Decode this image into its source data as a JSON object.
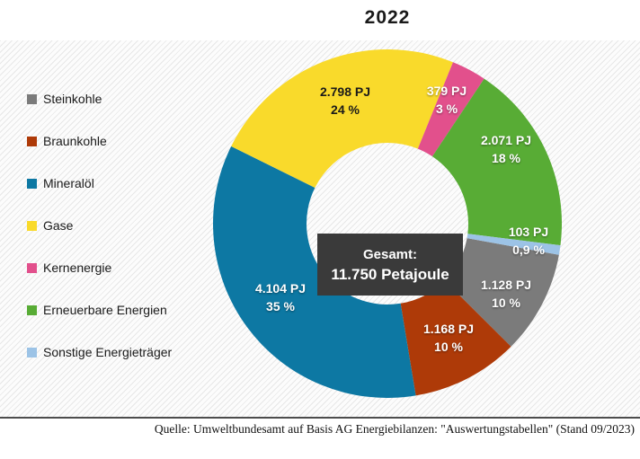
{
  "source": "Quelle: Umweltbundesamt auf Basis AG Energiebilanzen: \"Auswertungstabellen\" (Stand 09/2023)",
  "chart_data": {
    "type": "pie",
    "subtype": "donut",
    "title": "2022",
    "unit": "PJ",
    "total_value_pj": 11750,
    "center_label": {
      "line1": "Gesamt:",
      "line2": "11.750 Petajoule"
    },
    "legend_position": "left",
    "start_angle_deg": 100.3,
    "direction": "clockwise",
    "segments": [
      {
        "label": "Steinkohle",
        "value_pj": 1128,
        "value_label": "1.128 PJ",
        "percent": 10,
        "percent_label": "10 %",
        "color": "#7b7b7b",
        "text_color": "#ffffff"
      },
      {
        "label": "Braunkohle",
        "value_pj": 1168,
        "value_label": "1.168 PJ",
        "percent": 10,
        "percent_label": "10 %",
        "color": "#ae3a08",
        "text_color": "#ffffff"
      },
      {
        "label": "Mineralöl",
        "value_pj": 4104,
        "value_label": "4.104 PJ",
        "percent": 35,
        "percent_label": "35 %",
        "color": "#0d78a3",
        "text_color": "#ffffff"
      },
      {
        "label": "Gase",
        "value_pj": 2798,
        "value_label": "2.798 PJ",
        "percent": 24,
        "percent_label": "24 %",
        "color": "#f9da2b",
        "text_color": "#1a1a1a"
      },
      {
        "label": "Kernenergie",
        "value_pj": 379,
        "value_label": "379 PJ",
        "percent": 3,
        "percent_label": "3 %",
        "color": "#e2508c",
        "text_color": "#ffffff"
      },
      {
        "label": "Erneuerbare Energien",
        "value_pj": 2071,
        "value_label": "2.071 PJ",
        "percent": 18,
        "percent_label": "18 %",
        "color": "#58ac35",
        "text_color": "#ffffff"
      },
      {
        "label": "Sonstige Energieträger",
        "value_pj": 103,
        "value_label": "103 PJ",
        "percent": 0.9,
        "percent_label": "0,9 %",
        "color": "#9cc3e6",
        "text_color": "#ffffff"
      }
    ]
  }
}
